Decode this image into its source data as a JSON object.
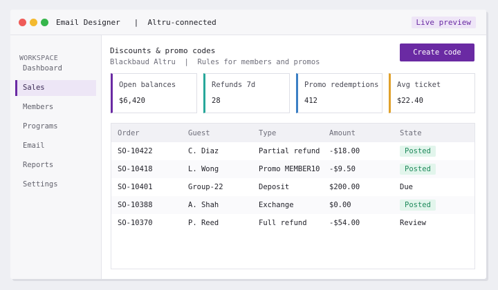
{
  "window": {
    "app_name": "Email Designer",
    "separator": "|",
    "context": "Altru-connected",
    "badge": "Live preview"
  },
  "sidebar": {
    "section_label": "WORKSPACE",
    "items": [
      {
        "label": "Dashboard",
        "active": false
      },
      {
        "label": "Sales",
        "active": true
      },
      {
        "label": "Members",
        "active": false
      },
      {
        "label": "Programs",
        "active": false
      },
      {
        "label": "Email",
        "active": false
      },
      {
        "label": "Reports",
        "active": false
      },
      {
        "label": "Settings",
        "active": false
      }
    ]
  },
  "header": {
    "title": "Discounts & promo codes",
    "crumb_source": "Blackbaud Altru",
    "crumb_separator": "|",
    "crumb_desc": "Rules for members and promos",
    "create_button": "Create code"
  },
  "cards": [
    {
      "label": "Open balances",
      "value": "$6,420",
      "accent": "#6a2aa3"
    },
    {
      "label": "Refunds 7d",
      "value": "28",
      "accent": "#27a79a"
    },
    {
      "label": "Promo redemptions",
      "value": "412",
      "accent": "#3b7fc4"
    },
    {
      "label": "Avg ticket",
      "value": "$22.40",
      "accent": "#e0a12b"
    }
  ],
  "table": {
    "columns": [
      "Order",
      "Guest",
      "Type",
      "Amount",
      "State"
    ],
    "rows": [
      {
        "order": "SO-10422",
        "guest": "C. Diaz",
        "type": "Partial refund",
        "amount": "-$18.00",
        "state": "Posted",
        "pill": true
      },
      {
        "order": "SO-10418",
        "guest": "L. Wong",
        "type": "Promo MEMBER10",
        "amount": "-$9.50",
        "state": "Posted",
        "pill": true
      },
      {
        "order": "SO-10401",
        "guest": "Group-22",
        "type": "Deposit",
        "amount": "$200.00",
        "state": "Due",
        "pill": false
      },
      {
        "order": "SO-10388",
        "guest": "A. Shah",
        "type": "Exchange",
        "amount": "$0.00",
        "state": "Posted",
        "pill": true
      },
      {
        "order": "SO-10370",
        "guest": "P. Reed",
        "type": "Full refund",
        "amount": "-$54.00",
        "state": "Review",
        "pill": false
      }
    ]
  }
}
